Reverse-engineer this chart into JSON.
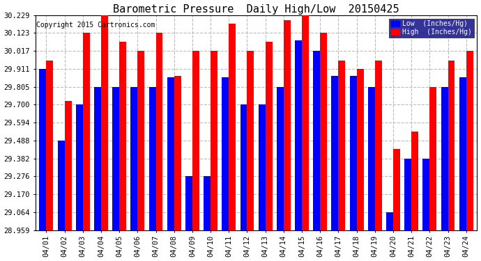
{
  "title": "Barometric Pressure  Daily High/Low  20150425",
  "copyright": "Copyright 2015 Cartronics.com",
  "dates": [
    "04/01",
    "04/02",
    "04/03",
    "04/04",
    "04/05",
    "04/06",
    "04/07",
    "04/08",
    "04/09",
    "04/10",
    "04/11",
    "04/12",
    "04/13",
    "04/14",
    "04/15",
    "04/16",
    "04/17",
    "04/18",
    "04/19",
    "04/20",
    "04/21",
    "04/22",
    "04/23",
    "04/24"
  ],
  "low_values": [
    29.911,
    29.488,
    29.7,
    29.805,
    29.805,
    29.805,
    29.805,
    29.86,
    29.276,
    29.276,
    29.86,
    29.7,
    29.7,
    29.805,
    30.08,
    30.017,
    29.87,
    29.87,
    29.805,
    29.064,
    29.382,
    29.382,
    29.805,
    29.86
  ],
  "high_values": [
    29.96,
    29.72,
    30.123,
    30.229,
    30.07,
    30.017,
    30.123,
    29.87,
    30.017,
    30.017,
    30.18,
    30.017,
    30.07,
    30.2,
    30.229,
    30.123,
    29.96,
    29.911,
    29.96,
    29.44,
    29.54,
    29.805,
    29.96,
    30.017
  ],
  "ymin": 28.959,
  "ymax": 30.229,
  "yticks": [
    28.959,
    29.064,
    29.17,
    29.276,
    29.382,
    29.488,
    29.594,
    29.7,
    29.805,
    29.911,
    30.017,
    30.123,
    30.229
  ],
  "bg_color": "#ffffff",
  "low_color": "#0000ff",
  "high_color": "#ff0000",
  "grid_color": "#bbbbbb",
  "title_fontsize": 11,
  "tick_fontsize": 7.5,
  "copyright_fontsize": 7
}
